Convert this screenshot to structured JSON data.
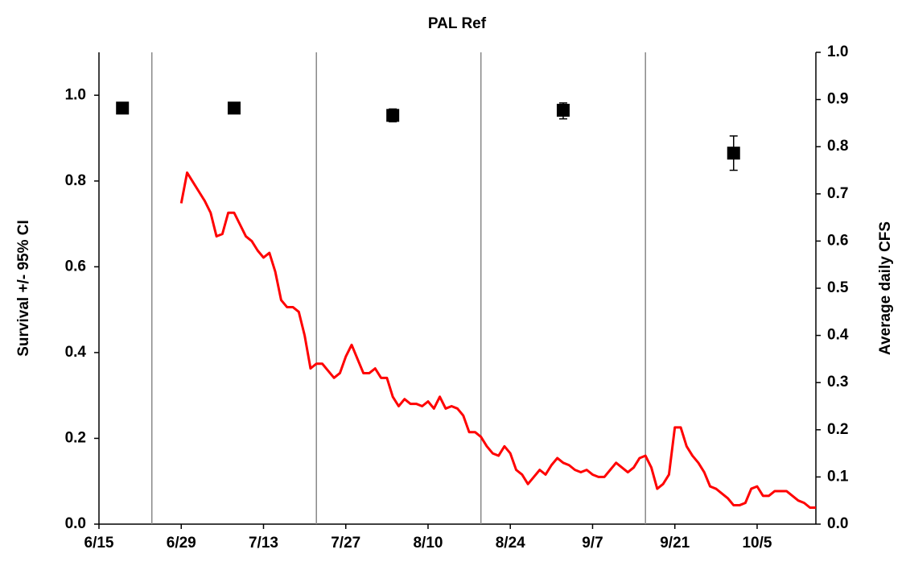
{
  "chart_data": {
    "type": "line",
    "title": "PAL Ref",
    "ylabel": "Survival +/- 95% CI",
    "y2label": "Average daily CFS",
    "xlim": [
      "6/15",
      "10/15"
    ],
    "xticks": [
      "6/15",
      "6/29",
      "7/13",
      "7/27",
      "8/10",
      "8/24",
      "9/7",
      "9/21",
      "10/5"
    ],
    "ylim": [
      0,
      1.1
    ],
    "yticks": [
      {
        "value": 0,
        "label": "0.0"
      },
      0.2,
      0.4,
      0.6,
      0.8,
      {
        "value": 1,
        "label": "1.0"
      }
    ],
    "y2lim": [
      0,
      1
    ],
    "y2ticks": [
      {
        "value": 0,
        "label": "0.0"
      },
      0.1,
      0.2,
      0.3,
      0.4,
      0.5,
      0.6,
      0.7,
      0.8,
      0.9,
      {
        "value": 1,
        "label": "1.0"
      }
    ],
    "vlines": [
      "6/24",
      "7/22",
      "8/19",
      "9/16"
    ],
    "series": [
      {
        "type": "scatter",
        "color": "#000000",
        "x": [
          "6/19",
          "7/8",
          "8/4",
          "9/2",
          "10/1"
        ],
        "values": [
          0.97,
          0.97,
          0.953,
          0.965,
          0.865
        ],
        "ci_low": [
          0.962,
          0.962,
          0.938,
          0.945,
          0.825
        ],
        "ci_high": [
          0.978,
          0.978,
          0.968,
          0.982,
          0.905
        ]
      },
      {
        "type": "line",
        "axis": "y2",
        "color": "#ff0000",
        "x": [
          "6/29",
          "6/30",
          "7/1",
          "7/2",
          "7/3",
          "7/4",
          "7/5",
          "7/6",
          "7/7",
          "7/8",
          "7/9",
          "7/10",
          "7/11",
          "7/12",
          "7/13",
          "7/14",
          "7/15",
          "7/16",
          "7/17",
          "7/18",
          "7/19",
          "7/20",
          "7/21",
          "7/22",
          "7/23",
          "7/24",
          "7/25",
          "7/26",
          "7/27",
          "7/28",
          "7/29",
          "7/30",
          "7/31",
          "8/1",
          "8/2",
          "8/3",
          "8/4",
          "8/5",
          "8/6",
          "8/7",
          "8/8",
          "8/9",
          "8/10",
          "8/11",
          "8/12",
          "8/13",
          "8/14",
          "8/15",
          "8/16",
          "8/17",
          "8/18",
          "8/19",
          "8/20",
          "8/21",
          "8/22",
          "8/23",
          "8/24",
          "8/25",
          "8/26",
          "8/27",
          "8/28",
          "8/29",
          "8/30",
          "8/31",
          "9/1",
          "9/2",
          "9/3",
          "9/4",
          "9/5",
          "9/6",
          "9/7",
          "9/8",
          "9/9",
          "9/10",
          "9/11",
          "9/12",
          "9/13",
          "9/14",
          "9/15",
          "9/16",
          "9/17",
          "9/18",
          "9/19",
          "9/20",
          "9/21",
          "9/22",
          "9/23",
          "9/24",
          "9/25",
          "9/26",
          "9/27",
          "9/28",
          "9/29",
          "9/30",
          "10/1",
          "10/2",
          "10/3",
          "10/4",
          "10/5",
          "10/6",
          "10/7",
          "10/8",
          "10/9",
          "10/10",
          "10/11",
          "10/12",
          "10/13",
          "10/14",
          "10/15"
        ],
        "values": [
          0.68,
          0.745,
          0.725,
          0.705,
          0.685,
          0.66,
          0.61,
          0.615,
          0.66,
          0.66,
          0.635,
          0.61,
          0.6,
          0.58,
          0.565,
          0.575,
          0.535,
          0.475,
          0.46,
          0.46,
          0.45,
          0.4,
          0.33,
          0.34,
          0.34,
          0.325,
          0.31,
          0.32,
          0.355,
          0.38,
          0.35,
          0.32,
          0.32,
          0.33,
          0.31,
          0.31,
          0.27,
          0.25,
          0.265,
          0.255,
          0.255,
          0.25,
          0.26,
          0.245,
          0.27,
          0.245,
          0.25,
          0.245,
          0.23,
          0.195,
          0.195,
          0.185,
          0.165,
          0.15,
          0.145,
          0.165,
          0.15,
          0.115,
          0.105,
          0.085,
          0.1,
          0.115,
          0.105,
          0.125,
          0.14,
          0.13,
          0.125,
          0.115,
          0.11,
          0.115,
          0.105,
          0.1,
          0.1,
          0.115,
          0.13,
          0.12,
          0.11,
          0.12,
          0.14,
          0.145,
          0.12,
          0.075,
          0.085,
          0.105,
          0.205,
          0.205,
          0.165,
          0.145,
          0.13,
          0.11,
          0.08,
          0.075,
          0.065,
          0.055,
          0.04,
          0.04,
          0.045,
          0.075,
          0.08,
          0.06,
          0.06,
          0.07,
          0.07,
          0.07,
          0.06,
          0.05,
          0.045,
          0.035,
          0.035
        ]
      }
    ]
  }
}
